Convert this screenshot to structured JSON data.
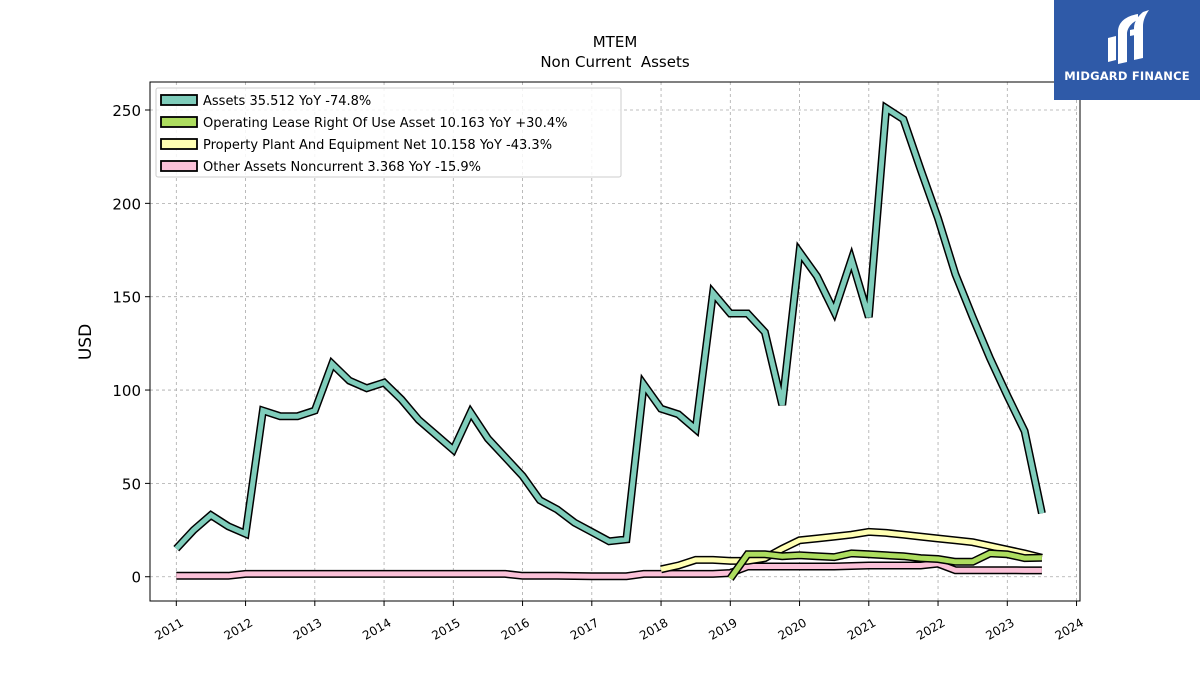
{
  "chart_data": {
    "type": "line",
    "title": "MTEM",
    "subtitle": "Non Current  Assets",
    "xlabel": "",
    "ylabel": "USD",
    "xlim": [
      2010.62,
      2024.05
    ],
    "ylim": [
      -13,
      265
    ],
    "yticks": [
      0,
      50,
      100,
      150,
      200,
      250
    ],
    "xticks": [
      2011,
      2012,
      2013,
      2014,
      2015,
      2016,
      2017,
      2018,
      2019,
      2020,
      2021,
      2022,
      2023,
      2024
    ],
    "grid": true,
    "legend_position": "top-left",
    "series": [
      {
        "name": "Assets",
        "legend_label": "Assets  35.512 YoY -74.8%",
        "color": "#7fcdbb",
        "points": [
          [
            2011.0,
            15
          ],
          [
            2011.25,
            25
          ],
          [
            2011.5,
            33
          ],
          [
            2011.75,
            27
          ],
          [
            2012.0,
            23
          ],
          [
            2012.25,
            89
          ],
          [
            2012.5,
            86
          ],
          [
            2012.75,
            86
          ],
          [
            2013.0,
            89
          ],
          [
            2013.25,
            114
          ],
          [
            2013.5,
            105
          ],
          [
            2013.75,
            101
          ],
          [
            2014.0,
            104
          ],
          [
            2014.25,
            95
          ],
          [
            2014.5,
            84
          ],
          [
            2014.75,
            76
          ],
          [
            2015.0,
            68
          ],
          [
            2015.25,
            88
          ],
          [
            2015.5,
            74
          ],
          [
            2015.75,
            64
          ],
          [
            2016.0,
            54
          ],
          [
            2016.25,
            41
          ],
          [
            2016.5,
            36
          ],
          [
            2016.75,
            29
          ],
          [
            2017.0,
            24
          ],
          [
            2017.25,
            19
          ],
          [
            2017.5,
            20
          ],
          [
            2017.75,
            103
          ],
          [
            2018.0,
            90
          ],
          [
            2018.25,
            87
          ],
          [
            2018.5,
            79
          ],
          [
            2018.75,
            152
          ],
          [
            2019.0,
            141
          ],
          [
            2019.25,
            141
          ],
          [
            2019.5,
            131
          ],
          [
            2019.75,
            92
          ],
          [
            2020.0,
            174
          ],
          [
            2020.25,
            161
          ],
          [
            2020.5,
            142
          ],
          [
            2020.75,
            170
          ],
          [
            2021.0,
            139
          ],
          [
            2021.25,
            251
          ],
          [
            2021.5,
            245
          ],
          [
            2021.75,
            218
          ],
          [
            2022.0,
            192
          ],
          [
            2022.25,
            162
          ],
          [
            2022.5,
            139
          ],
          [
            2022.75,
            117
          ],
          [
            2023.0,
            97
          ],
          [
            2023.25,
            78
          ],
          [
            2023.5,
            34
          ]
        ]
      },
      {
        "name": "Operating Lease Right Of Use Asset",
        "legend_label": "Operating Lease Right Of Use Asset  10.163 YoY +30.4%",
        "color": "#addd5f",
        "points": [
          [
            2019.0,
            -1
          ],
          [
            2019.25,
            12
          ],
          [
            2019.5,
            12
          ],
          [
            2019.75,
            11
          ],
          [
            2020.0,
            11.5
          ],
          [
            2020.25,
            11
          ],
          [
            2020.5,
            10.5
          ],
          [
            2020.75,
            12.5
          ],
          [
            2021.0,
            12
          ],
          [
            2021.25,
            11.5
          ],
          [
            2021.5,
            11
          ],
          [
            2021.75,
            10
          ],
          [
            2022.0,
            9.5
          ],
          [
            2022.25,
            8
          ],
          [
            2022.5,
            8
          ],
          [
            2022.75,
            12.5
          ],
          [
            2023.0,
            12
          ],
          [
            2023.25,
            10
          ],
          [
            2023.5,
            10.2
          ]
        ]
      },
      {
        "name": "Property Plant And Equipment Net",
        "legend_label": "Property Plant And Equipment Net  10.158 YoY -43.3%",
        "color": "#ffffb3",
        "points": [
          [
            2018.0,
            4
          ],
          [
            2018.25,
            6
          ],
          [
            2018.5,
            9
          ],
          [
            2018.75,
            9
          ],
          [
            2019.0,
            8.5
          ],
          [
            2019.25,
            8.5
          ],
          [
            2019.5,
            10
          ],
          [
            2019.75,
            15
          ],
          [
            2020.0,
            19.5
          ],
          [
            2020.25,
            20.5
          ],
          [
            2020.5,
            21.5
          ],
          [
            2020.75,
            22.5
          ],
          [
            2021.0,
            24
          ],
          [
            2021.25,
            23.5
          ],
          [
            2021.5,
            22.5
          ],
          [
            2021.75,
            21.5
          ],
          [
            2022.0,
            20.5
          ],
          [
            2022.25,
            19.5
          ],
          [
            2022.5,
            18.5
          ],
          [
            2022.75,
            16.5
          ],
          [
            2023.0,
            14.5
          ],
          [
            2023.25,
            12.5
          ],
          [
            2023.5,
            10.2
          ]
        ]
      },
      {
        "name": "Other Assets Noncurrent",
        "legend_label": "Other Assets Noncurrent  3.368 YoY -15.9%",
        "color": "#fbc1d8",
        "points": [
          [
            2011.0,
            0.5
          ],
          [
            2011.5,
            0.5
          ],
          [
            2011.75,
            0.5
          ],
          [
            2012.0,
            1.5
          ],
          [
            2012.5,
            1.5
          ],
          [
            2013.0,
            1.5
          ],
          [
            2013.5,
            1.5
          ],
          [
            2014.0,
            1.5
          ],
          [
            2014.5,
            1.5
          ],
          [
            2015.0,
            1.5
          ],
          [
            2015.5,
            1.5
          ],
          [
            2015.75,
            1.5
          ],
          [
            2016.0,
            0.5
          ],
          [
            2016.5,
            0.5
          ],
          [
            2017.0,
            0.3
          ],
          [
            2017.5,
            0.3
          ],
          [
            2017.75,
            1.5
          ],
          [
            2018.25,
            1.5
          ],
          [
            2018.75,
            1.5
          ],
          [
            2019.0,
            2
          ],
          [
            2019.25,
            5.5
          ],
          [
            2019.5,
            5.5
          ],
          [
            2019.75,
            5.5
          ],
          [
            2020.0,
            5.5
          ],
          [
            2020.5,
            5.5
          ],
          [
            2021.0,
            6
          ],
          [
            2021.5,
            6
          ],
          [
            2021.75,
            6
          ],
          [
            2022.0,
            7
          ],
          [
            2022.25,
            3.5
          ],
          [
            2022.5,
            3.5
          ],
          [
            2022.75,
            3.5
          ],
          [
            2023.0,
            3.5
          ],
          [
            2023.25,
            3.4
          ],
          [
            2023.5,
            3.4
          ]
        ]
      }
    ]
  },
  "logo": {
    "text": "MIDGARD FINANCE",
    "bg": "#2f5aa8"
  }
}
